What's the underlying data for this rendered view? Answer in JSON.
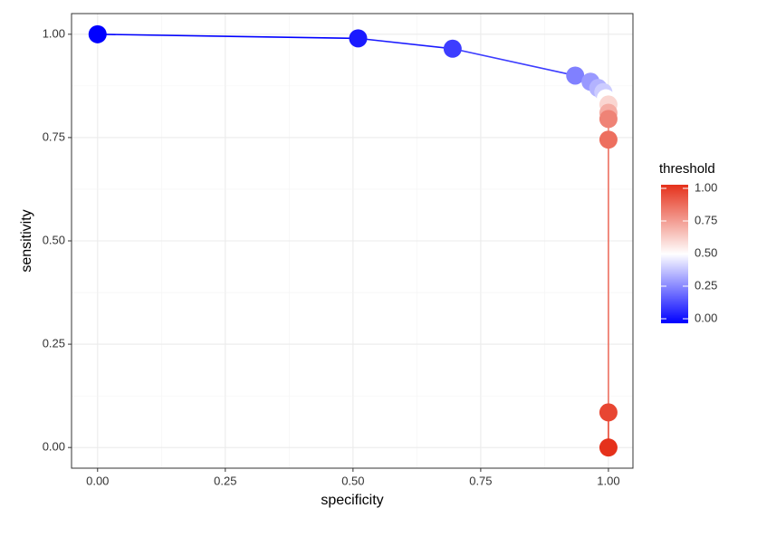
{
  "chart_data": {
    "type": "scatter",
    "x_label": "specificity",
    "y_label": "sensitivity",
    "x": [
      0,
      0.51,
      0.695,
      0.935,
      0.965,
      0.98,
      0.99,
      0.995,
      1.0,
      1.0,
      1.0,
      1.0,
      1.0,
      1.0
    ],
    "series": [
      {
        "name": "threshold",
        "values": [
          1.0,
          0.99,
          0.965,
          0.9,
          0.885,
          0.87,
          0.86,
          0.845,
          0.83,
          0.81,
          0.795,
          0.745,
          0.085,
          0.0
        ],
        "threshold": [
          0.0,
          0.05,
          0.12,
          0.25,
          0.3,
          0.35,
          0.4,
          0.5,
          0.6,
          0.7,
          0.8,
          0.85,
          0.95,
          1.0
        ]
      }
    ],
    "xlim": [
      -0.051,
      1.048
    ],
    "ylim": [
      -0.05,
      1.05
    ],
    "xticks": [
      {
        "value": 0,
        "label": "0.00"
      },
      {
        "value": 0.25,
        "label": "0.25"
      },
      {
        "value": 0.5,
        "label": "0.50"
      },
      {
        "value": 0.75,
        "label": "0.75"
      },
      {
        "value": 1,
        "label": "1.00"
      }
    ],
    "yticks": [
      {
        "value": 0,
        "label": "0.00"
      },
      {
        "value": 0.25,
        "label": "0.25"
      },
      {
        "value": 0.5,
        "label": "0.50"
      },
      {
        "value": 0.75,
        "label": "0.75"
      },
      {
        "value": 1,
        "label": "1.00"
      }
    ],
    "grid": true,
    "legend": {
      "title": "threshold",
      "lim": [
        0,
        1
      ],
      "midpoint": 0.5,
      "color_low": "#0000ff",
      "color_mid": "#ffffff",
      "color_high": "#e5311b",
      "ticks": [
        {
          "value": 0,
          "label": "0.00"
        },
        {
          "value": 0.25,
          "label": "0.25"
        },
        {
          "value": 0.5,
          "label": "0.50"
        },
        {
          "value": 0.75,
          "label": "0.75"
        },
        {
          "value": 1,
          "label": "1.00"
        }
      ]
    }
  }
}
